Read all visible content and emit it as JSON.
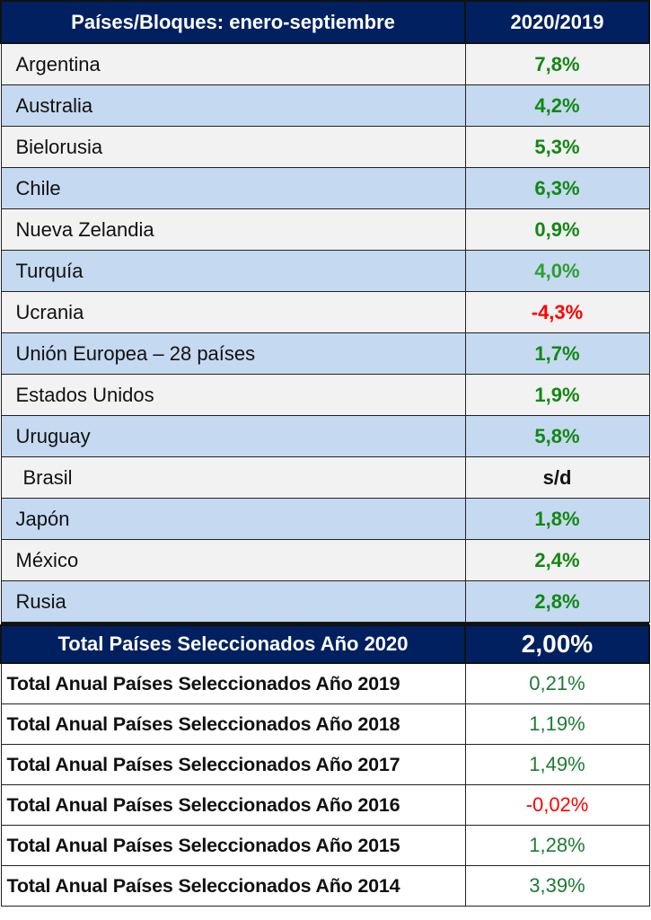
{
  "header": {
    "col1": "Países/Bloques: enero-septiembre",
    "col2": "2020/2019"
  },
  "colors": {
    "header_bg": "#002060",
    "row_light": "#f2f2f2",
    "row_blue": "#c5d9f1",
    "positive": "#118811",
    "negative": "#ff0000",
    "annual_positive": "#1e7b34"
  },
  "rows": [
    {
      "name": "Argentina",
      "value": "7,8%",
      "sign": "pos"
    },
    {
      "name": "Australia",
      "value": "4,2%",
      "sign": "pos"
    },
    {
      "name": "Bielorusia",
      "value": "5,3%",
      "sign": "pos"
    },
    {
      "name": "Chile",
      "value": "6,3%",
      "sign": "pos"
    },
    {
      "name": "Nueva Zelandia",
      "value": "0,9%",
      "sign": "pos"
    },
    {
      "name": "Turquía",
      "value": "4,0%",
      "sign": "pos"
    },
    {
      "name": "Ucrania",
      "value": "-4,3%",
      "sign": "neg"
    },
    {
      "name": "Unión Europea – 28 países",
      "value": "1,7%",
      "sign": "pos"
    },
    {
      "name": "Estados Unidos",
      "value": "1,9%",
      "sign": "pos"
    },
    {
      "name": "Uruguay",
      "value": "5,8%",
      "sign": "pos"
    },
    {
      "name": "Brasil",
      "value": "s/d",
      "sign": "none"
    },
    {
      "name": "Japón",
      "value": "1,8%",
      "sign": "pos"
    },
    {
      "name": "México",
      "value": "2,4%",
      "sign": "pos"
    },
    {
      "name": "Rusia",
      "value": "2,8%",
      "sign": "pos"
    }
  ],
  "total": {
    "label": "Total Países Seleccionados Año 2020",
    "value": "2,00%"
  },
  "annual": [
    {
      "label": "Total Anual Países Seleccionados Año 2019",
      "value": "0,21%",
      "sign": "pos"
    },
    {
      "label": "Total Anual Países Seleccionados Año 2018",
      "value": "1,19%",
      "sign": "pos"
    },
    {
      "label": "Total Anual Países Seleccionados Año 2017",
      "value": "1,49%",
      "sign": "pos"
    },
    {
      "label": "Total Anual Países Seleccionados Año 2016",
      "value": "-0,02%",
      "sign": "neg"
    },
    {
      "label": "Total Anual Países Seleccionados Año 2015",
      "value": "1,28%",
      "sign": "pos"
    },
    {
      "label": "Total Anual Países Seleccionados Año 2014",
      "value": "3,39%",
      "sign": "pos"
    }
  ]
}
